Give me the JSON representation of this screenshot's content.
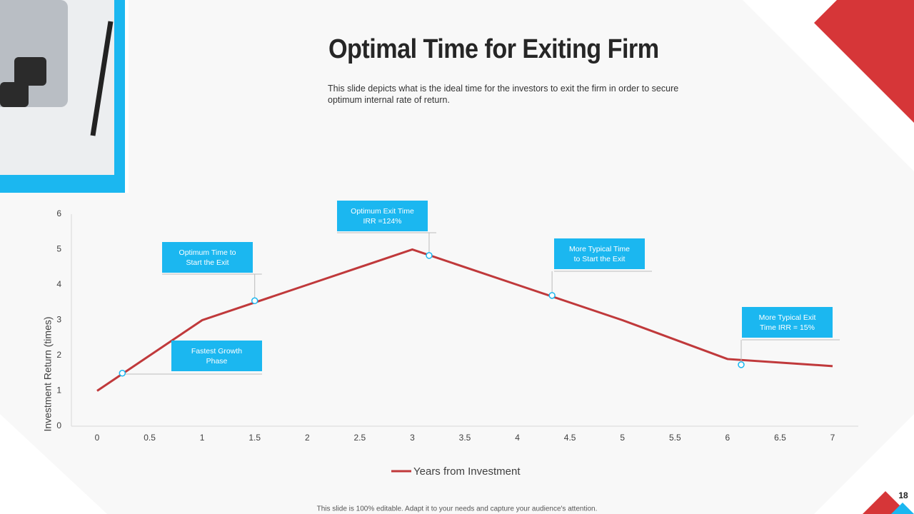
{
  "chart_data": {
    "type": "line",
    "title": "Optimal Time for Exiting Firm",
    "subtitle": "This slide depicts what is the ideal time for the investors to exit the firm in order to secure optimum internal rate of return.",
    "y_label": "Investment Return (times)",
    "x": [
      0,
      1,
      2,
      3,
      4,
      5,
      6,
      7
    ],
    "series": [
      {
        "name": "Years from Investment",
        "color": "#c0393b",
        "values": [
          1,
          3,
          4,
          5,
          4,
          3,
          1.9,
          1.7
        ]
      }
    ],
    "xlim": [
      0,
      7
    ],
    "xticks": [
      0,
      0.5,
      1,
      1.5,
      2,
      2.5,
      3,
      3.5,
      4,
      4.5,
      5,
      5.5,
      6,
      6.5,
      7
    ],
    "ylim": [
      0,
      6
    ],
    "yticks": [
      0,
      1,
      2,
      3,
      4,
      5,
      6
    ],
    "legend": "bottom",
    "annotations": [
      {
        "lines": [
          "Fastest Growth",
          "Phase"
        ],
        "x": 0.24,
        "y": 1.5
      },
      {
        "lines": [
          "Optimum Time to",
          "Start the Exit"
        ],
        "x": 1.5,
        "y": 3.55
      },
      {
        "lines": [
          "Optimum Exit Time",
          "IRR =124%"
        ],
        "x": 3.16,
        "y": 4.83
      },
      {
        "lines": [
          "More Typical Time",
          "to Start the Exit"
        ],
        "x": 4.33,
        "y": 3.7
      },
      {
        "lines": [
          "More Typical Exit",
          "Time IRR = 15%"
        ],
        "x": 6.13,
        "y": 1.74
      }
    ]
  },
  "footer": "This slide is 100% editable. Adapt it to your needs and capture your audience's attention.",
  "page_number": "18"
}
